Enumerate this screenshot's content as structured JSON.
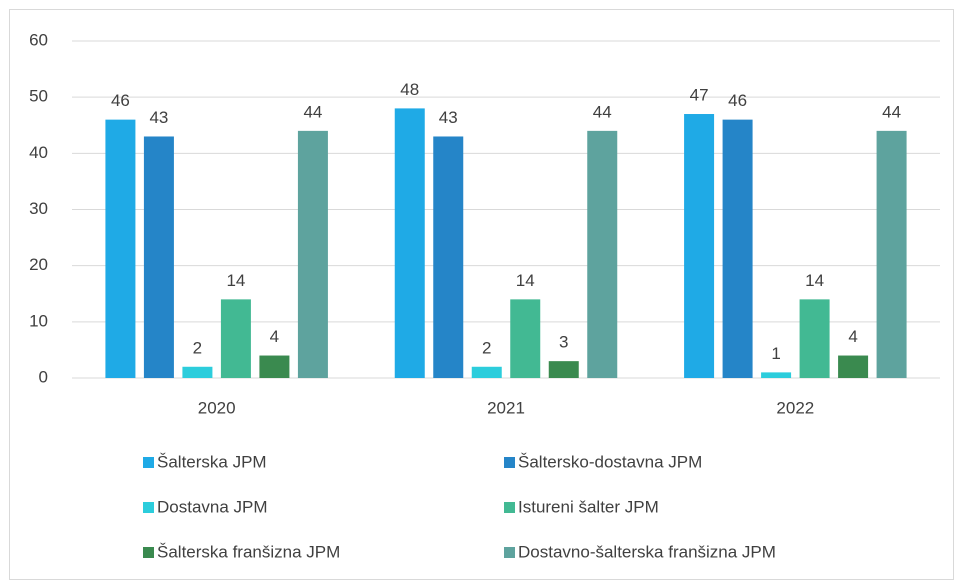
{
  "chart_data": {
    "type": "bar",
    "categories": [
      "2020",
      "2021",
      "2022"
    ],
    "series": [
      {
        "name": "Šalterska JPM",
        "color": "#1faae6",
        "values": [
          46,
          48,
          47
        ]
      },
      {
        "name": "Šaltersko-dostavna JPM",
        "color": "#2585c8",
        "values": [
          43,
          43,
          46
        ]
      },
      {
        "name": "Dostavna JPM",
        "color": "#2ccddc",
        "values": [
          2,
          2,
          1
        ]
      },
      {
        "name": "Istureni šalter JPM",
        "color": "#42b993",
        "values": [
          14,
          14,
          14
        ]
      },
      {
        "name": "Šalterska franšizna JPM",
        "color": "#3a8a4f",
        "values": [
          4,
          3,
          4
        ]
      },
      {
        "name": "Dostavno-šalterska franšizna JPM",
        "color": "#5ea39e",
        "values": [
          44,
          44,
          44
        ]
      }
    ],
    "ylim": [
      0,
      60
    ],
    "yticks": [
      0,
      10,
      20,
      30,
      40,
      50,
      60
    ],
    "grid": true,
    "legend": "bottom"
  }
}
